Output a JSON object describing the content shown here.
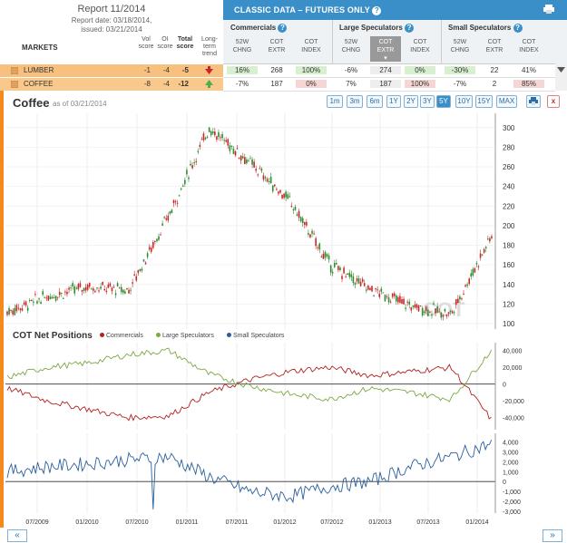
{
  "report": {
    "title": "Report 11/2014",
    "date": "Report date: 03/18/2014,",
    "issued": "issued: 03/21/2014"
  },
  "classic": {
    "title": "CLASSIC DATA – FUTURES ONLY",
    "help": "?"
  },
  "groups": {
    "commercials": "Commercials",
    "large": "Large Speculators",
    "small": "Small Speculators"
  },
  "col_headers": [
    "52W CHNG",
    "COT EXTR",
    "COT INDEX",
    "52W CHNG",
    "COT EXTR",
    "COT INDEX",
    "52W CHNG",
    "COT EXTR",
    "COT INDEX"
  ],
  "markets_header": "MARKETS",
  "left_headers": {
    "vol": "Vol score",
    "oi": "OI score",
    "total": "Total score",
    "trend": "Long-term trend"
  },
  "markets": [
    {
      "name": "LUMBER",
      "vol": "-1",
      "oi": "-4",
      "total": "-5",
      "trend": "down",
      "cells": [
        "16%",
        "268",
        "100%",
        "-6%",
        "274",
        "0%",
        "-30%",
        "22",
        "41%"
      ]
    },
    {
      "name": "COFFEE",
      "vol": "-8",
      "oi": "-4",
      "total": "-12",
      "trend": "up",
      "cells": [
        "-7%",
        "187",
        "0%",
        "7%",
        "187",
        "100%",
        "-7%",
        "2",
        "85%"
      ]
    }
  ],
  "chart": {
    "title": "Coffee",
    "asof": "as of 03/21/2014",
    "ranges": [
      "1m",
      "3m",
      "6m",
      "1Y",
      "2Y",
      "3Y",
      "5Y",
      "10Y",
      "15Y",
      "MAX"
    ],
    "active_range": "5Y",
    "print": "⎙",
    "close": "x",
    "watermark": "COT"
  },
  "cot": {
    "title": "COT Net Positions",
    "legend": [
      "Commercials",
      "Large Speculators",
      "Small Speculators"
    ]
  },
  "colors": {
    "accent": "#3a8fc9",
    "orange": "#f48a1b",
    "commercials": "#b22222",
    "large": "#7ea843",
    "small": "#2a5f9e",
    "up": "#2e8b2e",
    "down": "#c62828"
  },
  "chart_data": [
    {
      "type": "line",
      "title": "Coffee",
      "ylim": [
        100,
        310
      ],
      "yticks": [
        "300",
        "280",
        "260",
        "240",
        "220",
        "200",
        "180",
        "160",
        "140",
        "120",
        "100"
      ],
      "x": [
        "2009-03",
        "2009-07",
        "2010-01",
        "2010-07",
        "2011-01",
        "2011-05",
        "2011-07",
        "2012-01",
        "2012-07",
        "2013-01",
        "2013-07",
        "2014-01",
        "2014-03"
      ],
      "values": [
        112,
        128,
        138,
        134,
        210,
        300,
        265,
        225,
        160,
        135,
        118,
        110,
        190
      ]
    },
    {
      "type": "line",
      "title": "COT Net Positions",
      "ylim": [
        -50000,
        45000
      ],
      "yticks": [
        "40,000",
        "20,000",
        "0",
        "-20,000",
        "-40,000"
      ],
      "series": [
        {
          "name": "Commercials",
          "values": [
            -5000,
            -20000,
            -30000,
            -40000,
            -38000,
            -10000,
            5000,
            15000,
            20000,
            10000,
            15000,
            20000,
            -42000
          ]
        },
        {
          "name": "Large Speculators",
          "values": [
            8000,
            20000,
            25000,
            35000,
            40000,
            12000,
            -2000,
            -12000,
            -18000,
            -5000,
            -10000,
            -18000,
            40000
          ]
        }
      ]
    },
    {
      "type": "line",
      "title": "Small Speculators",
      "ylim": [
        -3000,
        4500
      ],
      "yticks": [
        "4,000",
        "3,000",
        "2,000",
        "1,000",
        "0",
        "-1,000",
        "-2,000",
        "-3,000"
      ],
      "series": [
        {
          "name": "Small Speculators",
          "values": [
            1000,
            1500,
            1800,
            2200,
            2500,
            500,
            -1000,
            -1500,
            -500,
            0,
            1500,
            2500,
            3800
          ]
        }
      ]
    }
  ],
  "xticks": [
    "07/2009",
    "01/2010",
    "07/2010",
    "01/2011",
    "07/2011",
    "01/2012",
    "07/2012",
    "01/2013",
    "07/2013",
    "01/2014"
  ],
  "nav": {
    "prev": "«",
    "next": "»"
  }
}
